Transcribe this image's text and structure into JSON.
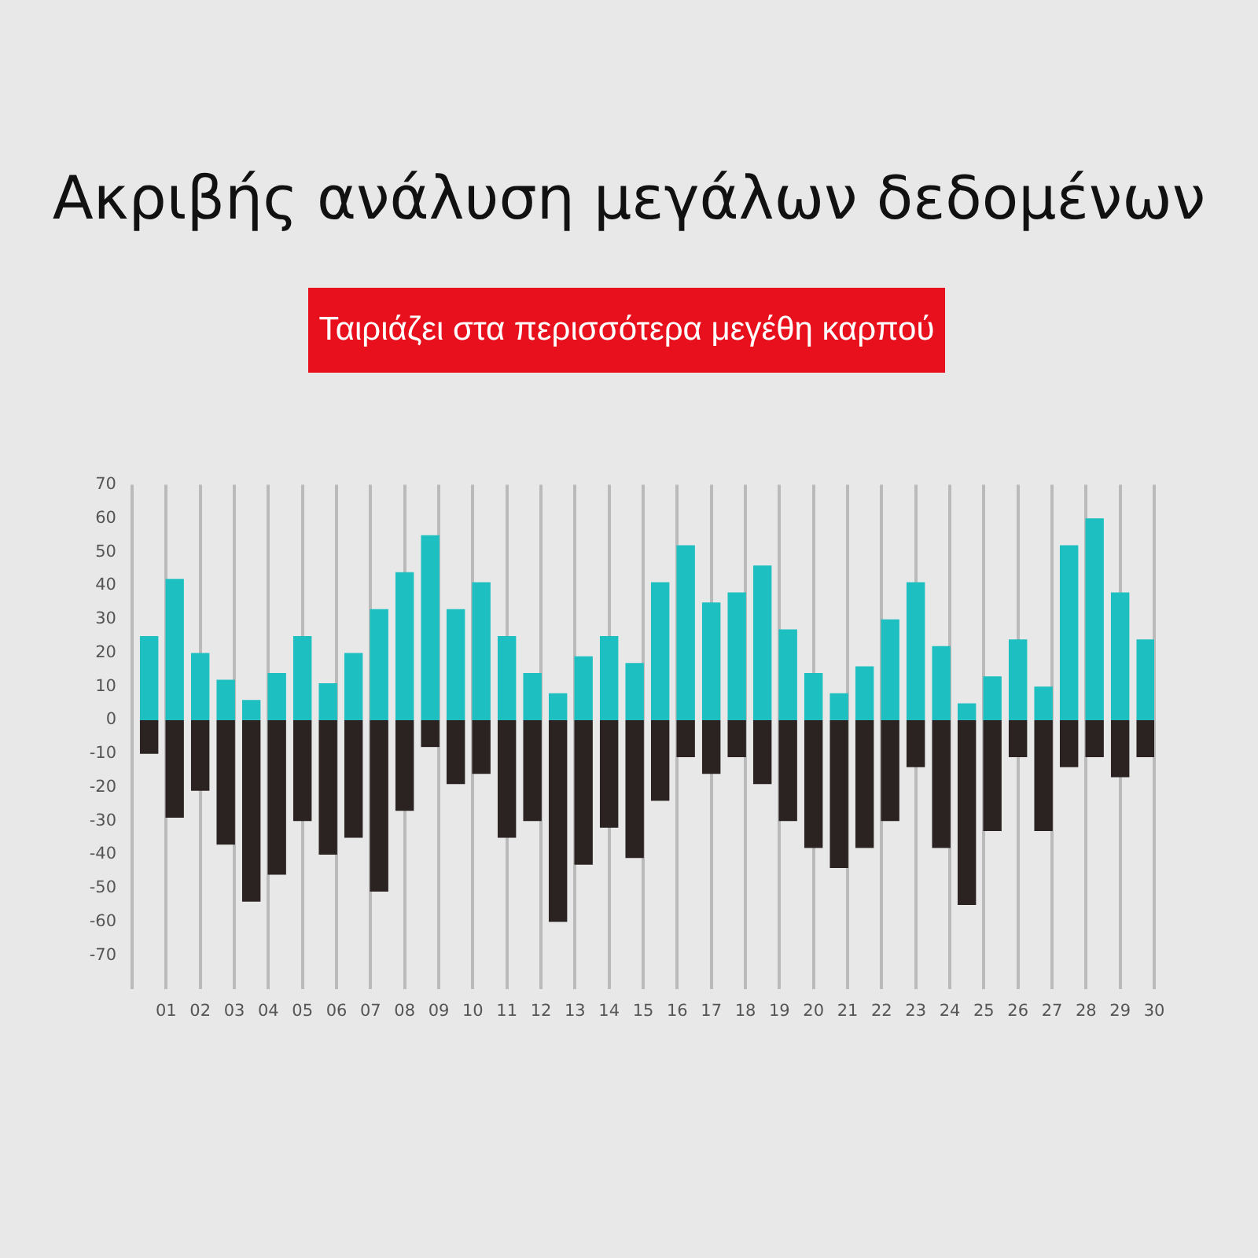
{
  "chart_data": {
    "type": "bar",
    "title": "Ακριβής ανάλυση μεγάλων δεδομένων",
    "subtitle": "Ταιριάζει στα περισσότερα μεγέθη καρπού",
    "x": [
      0.5,
      1.25,
      2,
      2.75,
      3.5,
      4.25,
      5,
      5.75,
      6.5,
      7.25,
      8,
      8.75,
      9.5,
      10.25,
      11,
      11.75,
      12.5,
      13.25,
      14,
      14.75,
      15.5,
      16.25,
      17,
      17.75,
      18.5,
      19.25,
      20,
      20.75,
      21.5,
      22.25,
      23,
      23.75,
      24.5,
      25.25,
      26,
      26.75,
      27.5,
      28.25,
      29,
      29.75
    ],
    "series": [
      {
        "color": "#1dbfc1",
        "values": [
          25,
          42,
          20,
          12,
          6,
          14,
          25,
          11,
          20,
          33,
          44,
          55,
          33,
          41,
          25,
          14,
          8,
          19,
          25,
          17,
          41,
          52,
          35,
          38,
          46,
          27,
          14,
          8,
          16,
          30,
          41,
          22,
          5,
          13,
          24,
          10,
          52,
          60,
          38,
          24
        ]
      },
      {
        "color": "#2b2321",
        "values": [
          -10,
          -29,
          -21,
          -37,
          -54,
          -46,
          -30,
          -40,
          -35,
          -51,
          -27,
          -8,
          -19,
          -16,
          -35,
          -30,
          -60,
          -43,
          -32,
          -41,
          -24,
          -11,
          -16,
          -11,
          -19,
          -30,
          -38,
          -44,
          -38,
          -30,
          -14,
          -38,
          -55,
          -33,
          -11,
          -33,
          -14,
          -11,
          -17,
          -11
        ]
      }
    ],
    "stacked": true,
    "xlim": [
      0,
      30
    ],
    "xticks": [
      {
        "value": 0,
        "label": null
      },
      {
        "value": 1,
        "label": "01"
      },
      {
        "value": 2,
        "label": "02"
      },
      {
        "value": 3,
        "label": "03"
      },
      {
        "value": 4,
        "label": "04"
      },
      {
        "value": 5,
        "label": "05"
      },
      {
        "value": 6,
        "label": "06"
      },
      {
        "value": 7,
        "label": "07"
      },
      {
        "value": 8,
        "label": "08"
      },
      {
        "value": 9,
        "label": "09"
      },
      10,
      11,
      12,
      13,
      14,
      15,
      16,
      17,
      18,
      19,
      20,
      21,
      22,
      23,
      24,
      25,
      26,
      27,
      28,
      29,
      30
    ],
    "ylim": [
      -80,
      70
    ],
    "yticks": [
      -70,
      -60,
      -50,
      -40,
      -30,
      -20,
      -10,
      0,
      10,
      20,
      30,
      40,
      50,
      60,
      70
    ],
    "grid": "x"
  }
}
